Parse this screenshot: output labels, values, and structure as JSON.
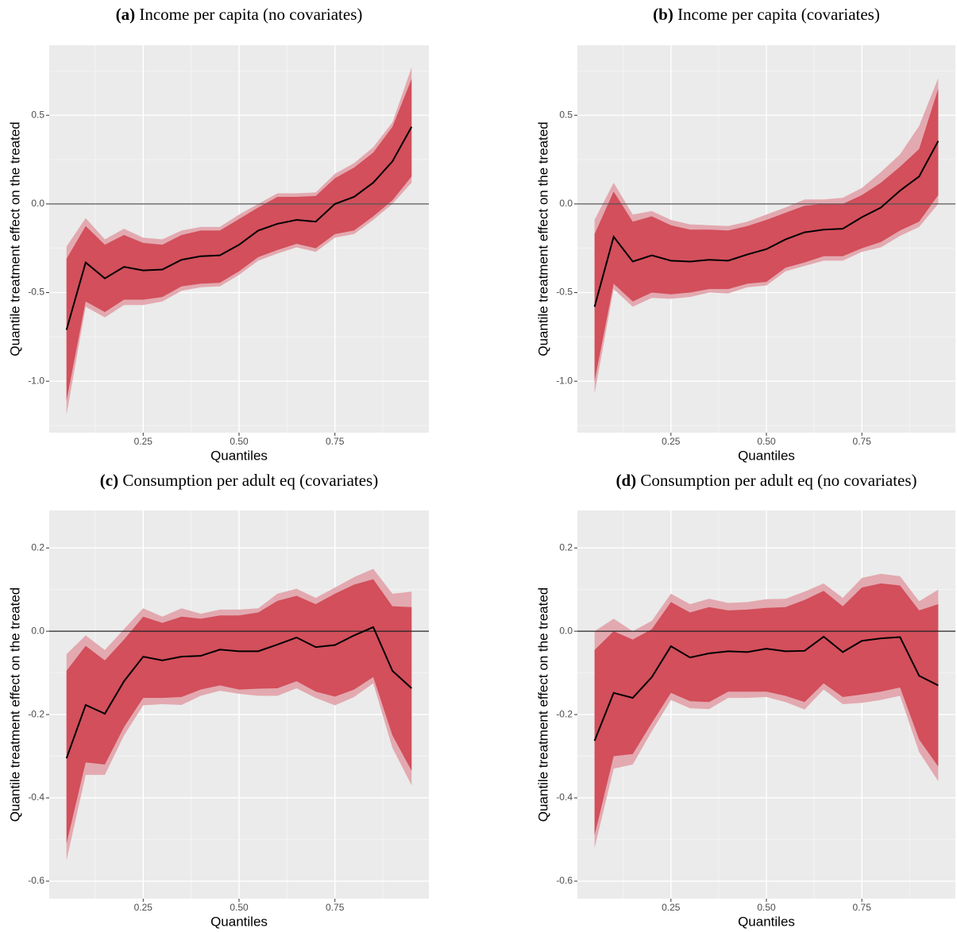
{
  "chart_data": [
    {
      "type": "band-line",
      "label": "(a)",
      "title": "Income per capita (no covariates)",
      "x_label": "Quantiles",
      "y_label": "Quantile treatment effect on the treated",
      "x": [
        0.05,
        0.1,
        0.15,
        0.2,
        0.25,
        0.3,
        0.35,
        0.4,
        0.45,
        0.5,
        0.55,
        0.6,
        0.65,
        0.7,
        0.75,
        0.8,
        0.85,
        0.9,
        0.95
      ],
      "xlim": [
        0.005,
        0.995
      ],
      "xticks": [
        0.25,
        {
          "value": 0.5,
          "label": "0.50"
        },
        0.75
      ],
      "ylim": [
        -1.29,
        0.895
      ],
      "yticks": [
        {
          "value": -1,
          "label": "-1.0"
        },
        -0.5,
        {
          "value": 0,
          "label": "0.0"
        },
        0.5
      ],
      "hline": 0,
      "hline_color": "#555555",
      "grid": true,
      "band_outer": {
        "color": "#e3a9b0",
        "upper": [
          -0.24,
          -0.08,
          -0.2,
          -0.14,
          -0.19,
          -0.2,
          -0.15,
          -0.13,
          -0.13,
          -0.06,
          0.0,
          0.06,
          0.06,
          0.065,
          0.17,
          0.23,
          0.32,
          0.46,
          0.77
        ],
        "lower": [
          -1.19,
          -0.58,
          -0.64,
          -0.57,
          -0.57,
          -0.55,
          -0.49,
          -0.47,
          -0.465,
          -0.4,
          -0.32,
          -0.28,
          -0.245,
          -0.27,
          -0.19,
          -0.17,
          -0.09,
          0.0,
          0.12
        ]
      },
      "band_inner": {
        "color": "#d24f5b",
        "upper": [
          -0.31,
          -0.125,
          -0.23,
          -0.175,
          -0.22,
          -0.23,
          -0.175,
          -0.15,
          -0.15,
          -0.085,
          -0.02,
          0.04,
          0.04,
          0.045,
          0.145,
          0.205,
          0.29,
          0.435,
          0.705
        ],
        "lower": [
          -1.11,
          -0.55,
          -0.61,
          -0.54,
          -0.54,
          -0.525,
          -0.465,
          -0.45,
          -0.445,
          -0.38,
          -0.3,
          -0.26,
          -0.225,
          -0.25,
          -0.17,
          -0.15,
          -0.07,
          0.02,
          0.155
        ]
      },
      "line": {
        "color": "#000000",
        "values": [
          -0.71,
          -0.33,
          -0.42,
          -0.355,
          -0.375,
          -0.37,
          -0.315,
          -0.295,
          -0.29,
          -0.23,
          -0.15,
          -0.112,
          -0.09,
          -0.1,
          0.0,
          0.04,
          0.12,
          0.24,
          0.435
        ]
      }
    },
    {
      "type": "band-line",
      "label": "(b)",
      "title": "Income per capita (covariates)",
      "x_label": "Quantiles",
      "y_label": "Quantile treatment effect on the treated",
      "x": [
        0.05,
        0.1,
        0.15,
        0.2,
        0.25,
        0.3,
        0.35,
        0.4,
        0.45,
        0.5,
        0.55,
        0.6,
        0.65,
        0.7,
        0.75,
        0.8,
        0.85,
        0.9,
        0.95
      ],
      "xlim": [
        0.005,
        0.995
      ],
      "xticks": [
        0.25,
        {
          "value": 0.5,
          "label": "0.50"
        },
        0.75
      ],
      "ylim": [
        -1.29,
        0.895
      ],
      "yticks": [
        {
          "value": -1,
          "label": "-1.0"
        },
        -0.5,
        {
          "value": 0,
          "label": "0.0"
        },
        0.5
      ],
      "hline": 0,
      "hline_color": "#555555",
      "grid": true,
      "band_outer": {
        "color": "#e3a9b0",
        "upper": [
          -0.09,
          0.12,
          -0.06,
          -0.04,
          -0.09,
          -0.115,
          -0.12,
          -0.125,
          -0.1,
          -0.06,
          -0.02,
          0.025,
          0.025,
          0.035,
          0.09,
          0.18,
          0.28,
          0.44,
          0.71
        ],
        "lower": [
          -1.07,
          -0.48,
          -0.58,
          -0.53,
          -0.535,
          -0.525,
          -0.5,
          -0.505,
          -0.47,
          -0.46,
          -0.38,
          -0.35,
          -0.32,
          -0.32,
          -0.27,
          -0.245,
          -0.18,
          -0.13,
          0.0
        ]
      },
      "band_inner": {
        "color": "#d24f5b",
        "upper": [
          -0.17,
          0.07,
          -0.1,
          -0.07,
          -0.12,
          -0.145,
          -0.145,
          -0.15,
          -0.125,
          -0.09,
          -0.05,
          -0.01,
          0.0,
          0.0,
          0.05,
          0.12,
          0.21,
          0.31,
          0.65
        ],
        "lower": [
          -1.0,
          -0.45,
          -0.55,
          -0.5,
          -0.51,
          -0.5,
          -0.48,
          -0.48,
          -0.45,
          -0.44,
          -0.36,
          -0.33,
          -0.295,
          -0.295,
          -0.25,
          -0.215,
          -0.15,
          -0.1,
          0.05
        ]
      },
      "line": {
        "color": "#000000",
        "values": [
          -0.58,
          -0.185,
          -0.325,
          -0.29,
          -0.32,
          -0.325,
          -0.315,
          -0.32,
          -0.285,
          -0.255,
          -0.2,
          -0.16,
          -0.145,
          -0.14,
          -0.075,
          -0.02,
          0.075,
          0.155,
          0.355
        ]
      }
    },
    {
      "type": "band-line",
      "label": "(c)",
      "title": "Consumption per adult eq (covariates)",
      "x_label": "Quantiles",
      "y_label": "Quantile treatment effect on the treated",
      "x": [
        0.05,
        0.1,
        0.15,
        0.2,
        0.25,
        0.3,
        0.35,
        0.4,
        0.45,
        0.5,
        0.55,
        0.6,
        0.65,
        0.7,
        0.75,
        0.8,
        0.85,
        0.9,
        0.95
      ],
      "xlim": [
        0.005,
        0.995
      ],
      "xticks": [
        0.25,
        {
          "value": 0.5,
          "label": "0.50"
        },
        0.75
      ],
      "ylim": [
        -0.642,
        0.29
      ],
      "yticks": [
        -0.6,
        -0.4,
        -0.2,
        {
          "value": 0,
          "label": "0.0"
        },
        0.2
      ],
      "hline": 0,
      "hline_color": "#222222",
      "grid": true,
      "band_outer": {
        "color": "#e3a9b0",
        "upper": [
          -0.055,
          -0.01,
          -0.045,
          0.005,
          0.055,
          0.035,
          0.055,
          0.042,
          0.052,
          0.052,
          0.055,
          0.09,
          0.102,
          0.08,
          0.105,
          0.13,
          0.15,
          0.09,
          0.095
        ],
        "lower": [
          -0.55,
          -0.345,
          -0.345,
          -0.25,
          -0.178,
          -0.175,
          -0.177,
          -0.155,
          -0.143,
          -0.15,
          -0.155,
          -0.155,
          -0.137,
          -0.16,
          -0.178,
          -0.158,
          -0.125,
          -0.28,
          -0.37
        ]
      },
      "band_inner": {
        "color": "#d24f5b",
        "upper": [
          -0.095,
          -0.035,
          -0.07,
          -0.02,
          0.035,
          0.02,
          0.035,
          0.03,
          0.038,
          0.038,
          0.045,
          0.073,
          0.085,
          0.065,
          0.09,
          0.112,
          0.125,
          0.06,
          0.058
        ],
        "lower": [
          -0.51,
          -0.315,
          -0.32,
          -0.23,
          -0.16,
          -0.16,
          -0.158,
          -0.14,
          -0.13,
          -0.14,
          -0.138,
          -0.137,
          -0.12,
          -0.145,
          -0.157,
          -0.14,
          -0.11,
          -0.25,
          -0.335
        ]
      },
      "line": {
        "color": "#000000",
        "values": [
          -0.305,
          -0.177,
          -0.198,
          -0.12,
          -0.061,
          -0.07,
          -0.061,
          -0.059,
          -0.044,
          -0.048,
          -0.048,
          -0.032,
          -0.015,
          -0.038,
          -0.033,
          -0.01,
          0.01,
          -0.095,
          -0.137
        ]
      }
    },
    {
      "type": "band-line",
      "label": "(d)",
      "title": "Consumption per adult eq (no covariates)",
      "x_label": "Quantiles",
      "y_label": "Quantile treatment effect on the treated",
      "x": [
        0.05,
        0.1,
        0.15,
        0.2,
        0.25,
        0.3,
        0.35,
        0.4,
        0.45,
        0.5,
        0.55,
        0.6,
        0.65,
        0.7,
        0.75,
        0.8,
        0.85,
        0.9,
        0.95
      ],
      "xlim": [
        0.005,
        0.995
      ],
      "xticks": [
        0.25,
        {
          "value": 0.5,
          "label": "0.50"
        },
        0.75
      ],
      "ylim": [
        -0.642,
        0.29
      ],
      "yticks": [
        -0.6,
        -0.4,
        -0.2,
        {
          "value": 0,
          "label": "0.0"
        },
        0.2
      ],
      "hline": 0,
      "hline_color": "#222222",
      "grid": true,
      "band_outer": {
        "color": "#e3a9b0",
        "upper": [
          0.0,
          0.03,
          0.0,
          0.025,
          0.09,
          0.065,
          0.078,
          0.068,
          0.07,
          0.077,
          0.078,
          0.095,
          0.115,
          0.08,
          0.128,
          0.138,
          0.132,
          0.072,
          0.1
        ],
        "lower": [
          -0.52,
          -0.33,
          -0.32,
          -0.24,
          -0.165,
          -0.185,
          -0.187,
          -0.16,
          -0.16,
          -0.158,
          -0.17,
          -0.188,
          -0.14,
          -0.175,
          -0.172,
          -0.165,
          -0.155,
          -0.29,
          -0.36
        ]
      },
      "band_inner": {
        "color": "#d24f5b",
        "upper": [
          -0.045,
          0.0,
          -0.02,
          0.005,
          0.07,
          0.045,
          0.058,
          0.05,
          0.052,
          0.056,
          0.058,
          0.075,
          0.097,
          0.06,
          0.105,
          0.115,
          0.11,
          0.05,
          0.065
        ],
        "lower": [
          -0.49,
          -0.3,
          -0.295,
          -0.22,
          -0.148,
          -0.168,
          -0.17,
          -0.145,
          -0.145,
          -0.145,
          -0.155,
          -0.17,
          -0.125,
          -0.158,
          -0.152,
          -0.145,
          -0.135,
          -0.26,
          -0.325
        ]
      },
      "line": {
        "color": "#000000",
        "values": [
          -0.263,
          -0.148,
          -0.16,
          -0.11,
          -0.036,
          -0.063,
          -0.053,
          -0.048,
          -0.05,
          -0.042,
          -0.048,
          -0.047,
          -0.013,
          -0.05,
          -0.023,
          -0.017,
          -0.014,
          -0.107,
          -0.13
        ]
      }
    }
  ]
}
